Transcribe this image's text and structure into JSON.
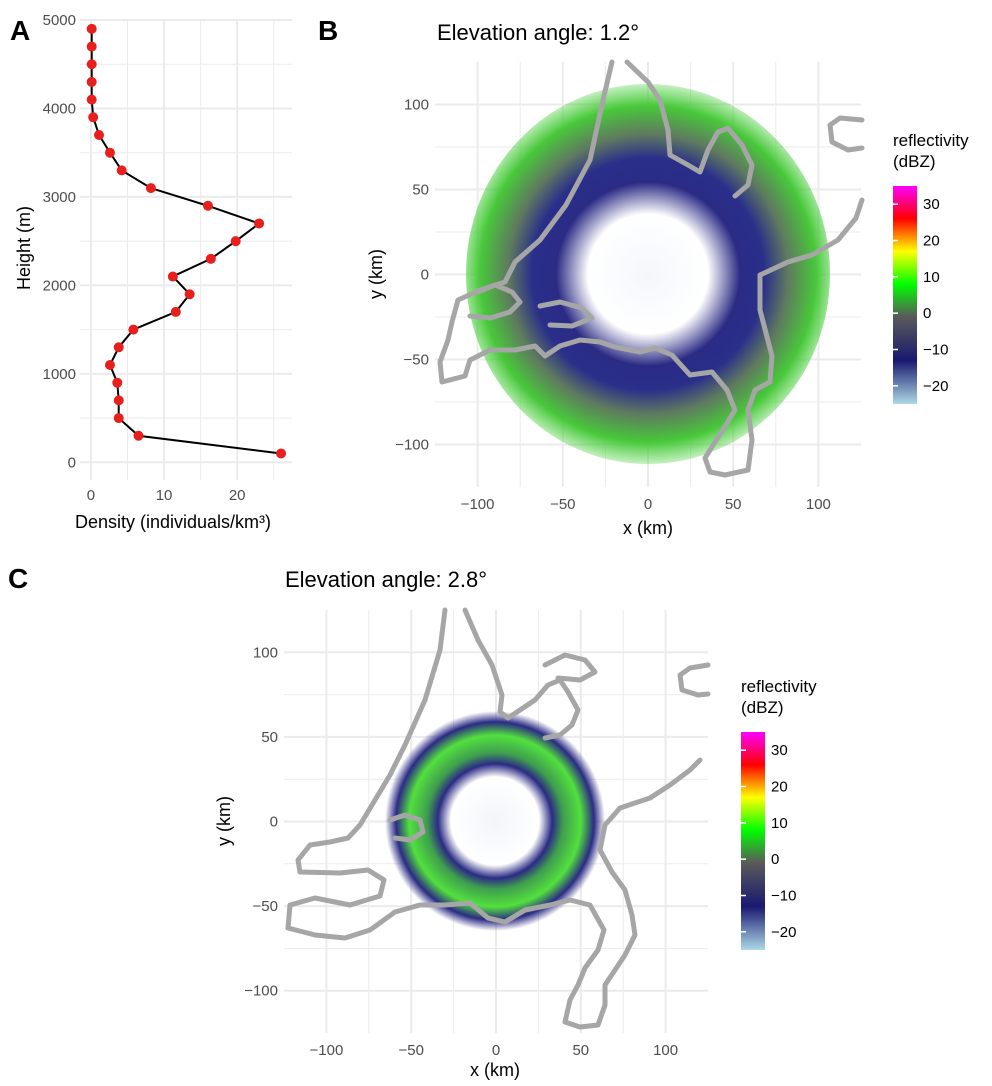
{
  "figure": {
    "panel_a_label": "A",
    "panel_b_label": "B",
    "panel_c_label": "C"
  },
  "chart_data": [
    {
      "type": "line",
      "panel": "A",
      "title": "",
      "xlabel": "Density (individuals/km³)",
      "ylabel": "Height (m)",
      "xlim": [
        -1.5,
        27.5
      ],
      "ylim": [
        -200,
        5000
      ],
      "xticks": [
        0,
        10,
        20
      ],
      "yticks": [
        0,
        1000,
        2000,
        3000,
        4000,
        5000
      ],
      "grid": true,
      "line_color": "#000000",
      "point_color": "#e8201d",
      "series": [
        {
          "x": [
            26.0,
            6.5,
            3.8,
            3.8,
            3.6,
            2.6,
            3.8,
            5.8,
            11.6,
            13.5,
            11.2,
            16.4,
            19.8,
            23.0,
            16.0,
            8.2,
            4.2,
            2.6,
            1.1,
            0.3,
            0.1,
            0.1,
            0.1,
            0.1,
            0.1
          ],
          "y": [
            100,
            300,
            500,
            700,
            900,
            1100,
            1300,
            1500,
            1700,
            1900,
            2100,
            2300,
            2500,
            2700,
            2900,
            3100,
            3300,
            3500,
            3700,
            3900,
            4100,
            4300,
            4500,
            4700,
            4900
          ]
        }
      ]
    },
    {
      "type": "heatmap",
      "panel": "B",
      "title": "Elevation angle: 1.2°",
      "xlabel": "x (km)",
      "ylabel": "y (km)",
      "xlim": [
        -125,
        125
      ],
      "ylim": [
        -125,
        125
      ],
      "xticks": [
        -100,
        -50,
        0,
        50,
        100
      ],
      "yticks": [
        -100,
        -50,
        0,
        50,
        100
      ],
      "grid": true,
      "ring_inner_radius_km": 60,
      "ring_outer_radius_km": 110,
      "legend": {
        "title_line1": "reflectivity",
        "title_line2": "(dBZ)",
        "placement": "right",
        "ticks": [
          30,
          20,
          10,
          0,
          -10,
          -20
        ]
      }
    },
    {
      "type": "heatmap",
      "panel": "C",
      "title": "Elevation angle: 2.8°",
      "xlabel": "x (km)",
      "ylabel": "y (km)",
      "xlim": [
        -125,
        125
      ],
      "ylim": [
        -125,
        125
      ],
      "xticks": [
        -100,
        -50,
        0,
        50,
        100
      ],
      "yticks": [
        -100,
        -50,
        0,
        50,
        100
      ],
      "grid": true,
      "ring_inner_radius_km": 35,
      "ring_outer_radius_km": 60,
      "legend": {
        "title_line1": "reflectivity",
        "title_line2": "(dBZ)",
        "placement": "right",
        "ticks": [
          30,
          20,
          10,
          0,
          -10,
          -20
        ]
      }
    }
  ],
  "colors": {
    "grid": "#ebebeb",
    "coastline": "#a6a6a6",
    "colorscale": [
      "#add8e6",
      "#191970",
      "#00ff00",
      "#ffff00",
      "#ff0000",
      "#ff00ff"
    ]
  }
}
